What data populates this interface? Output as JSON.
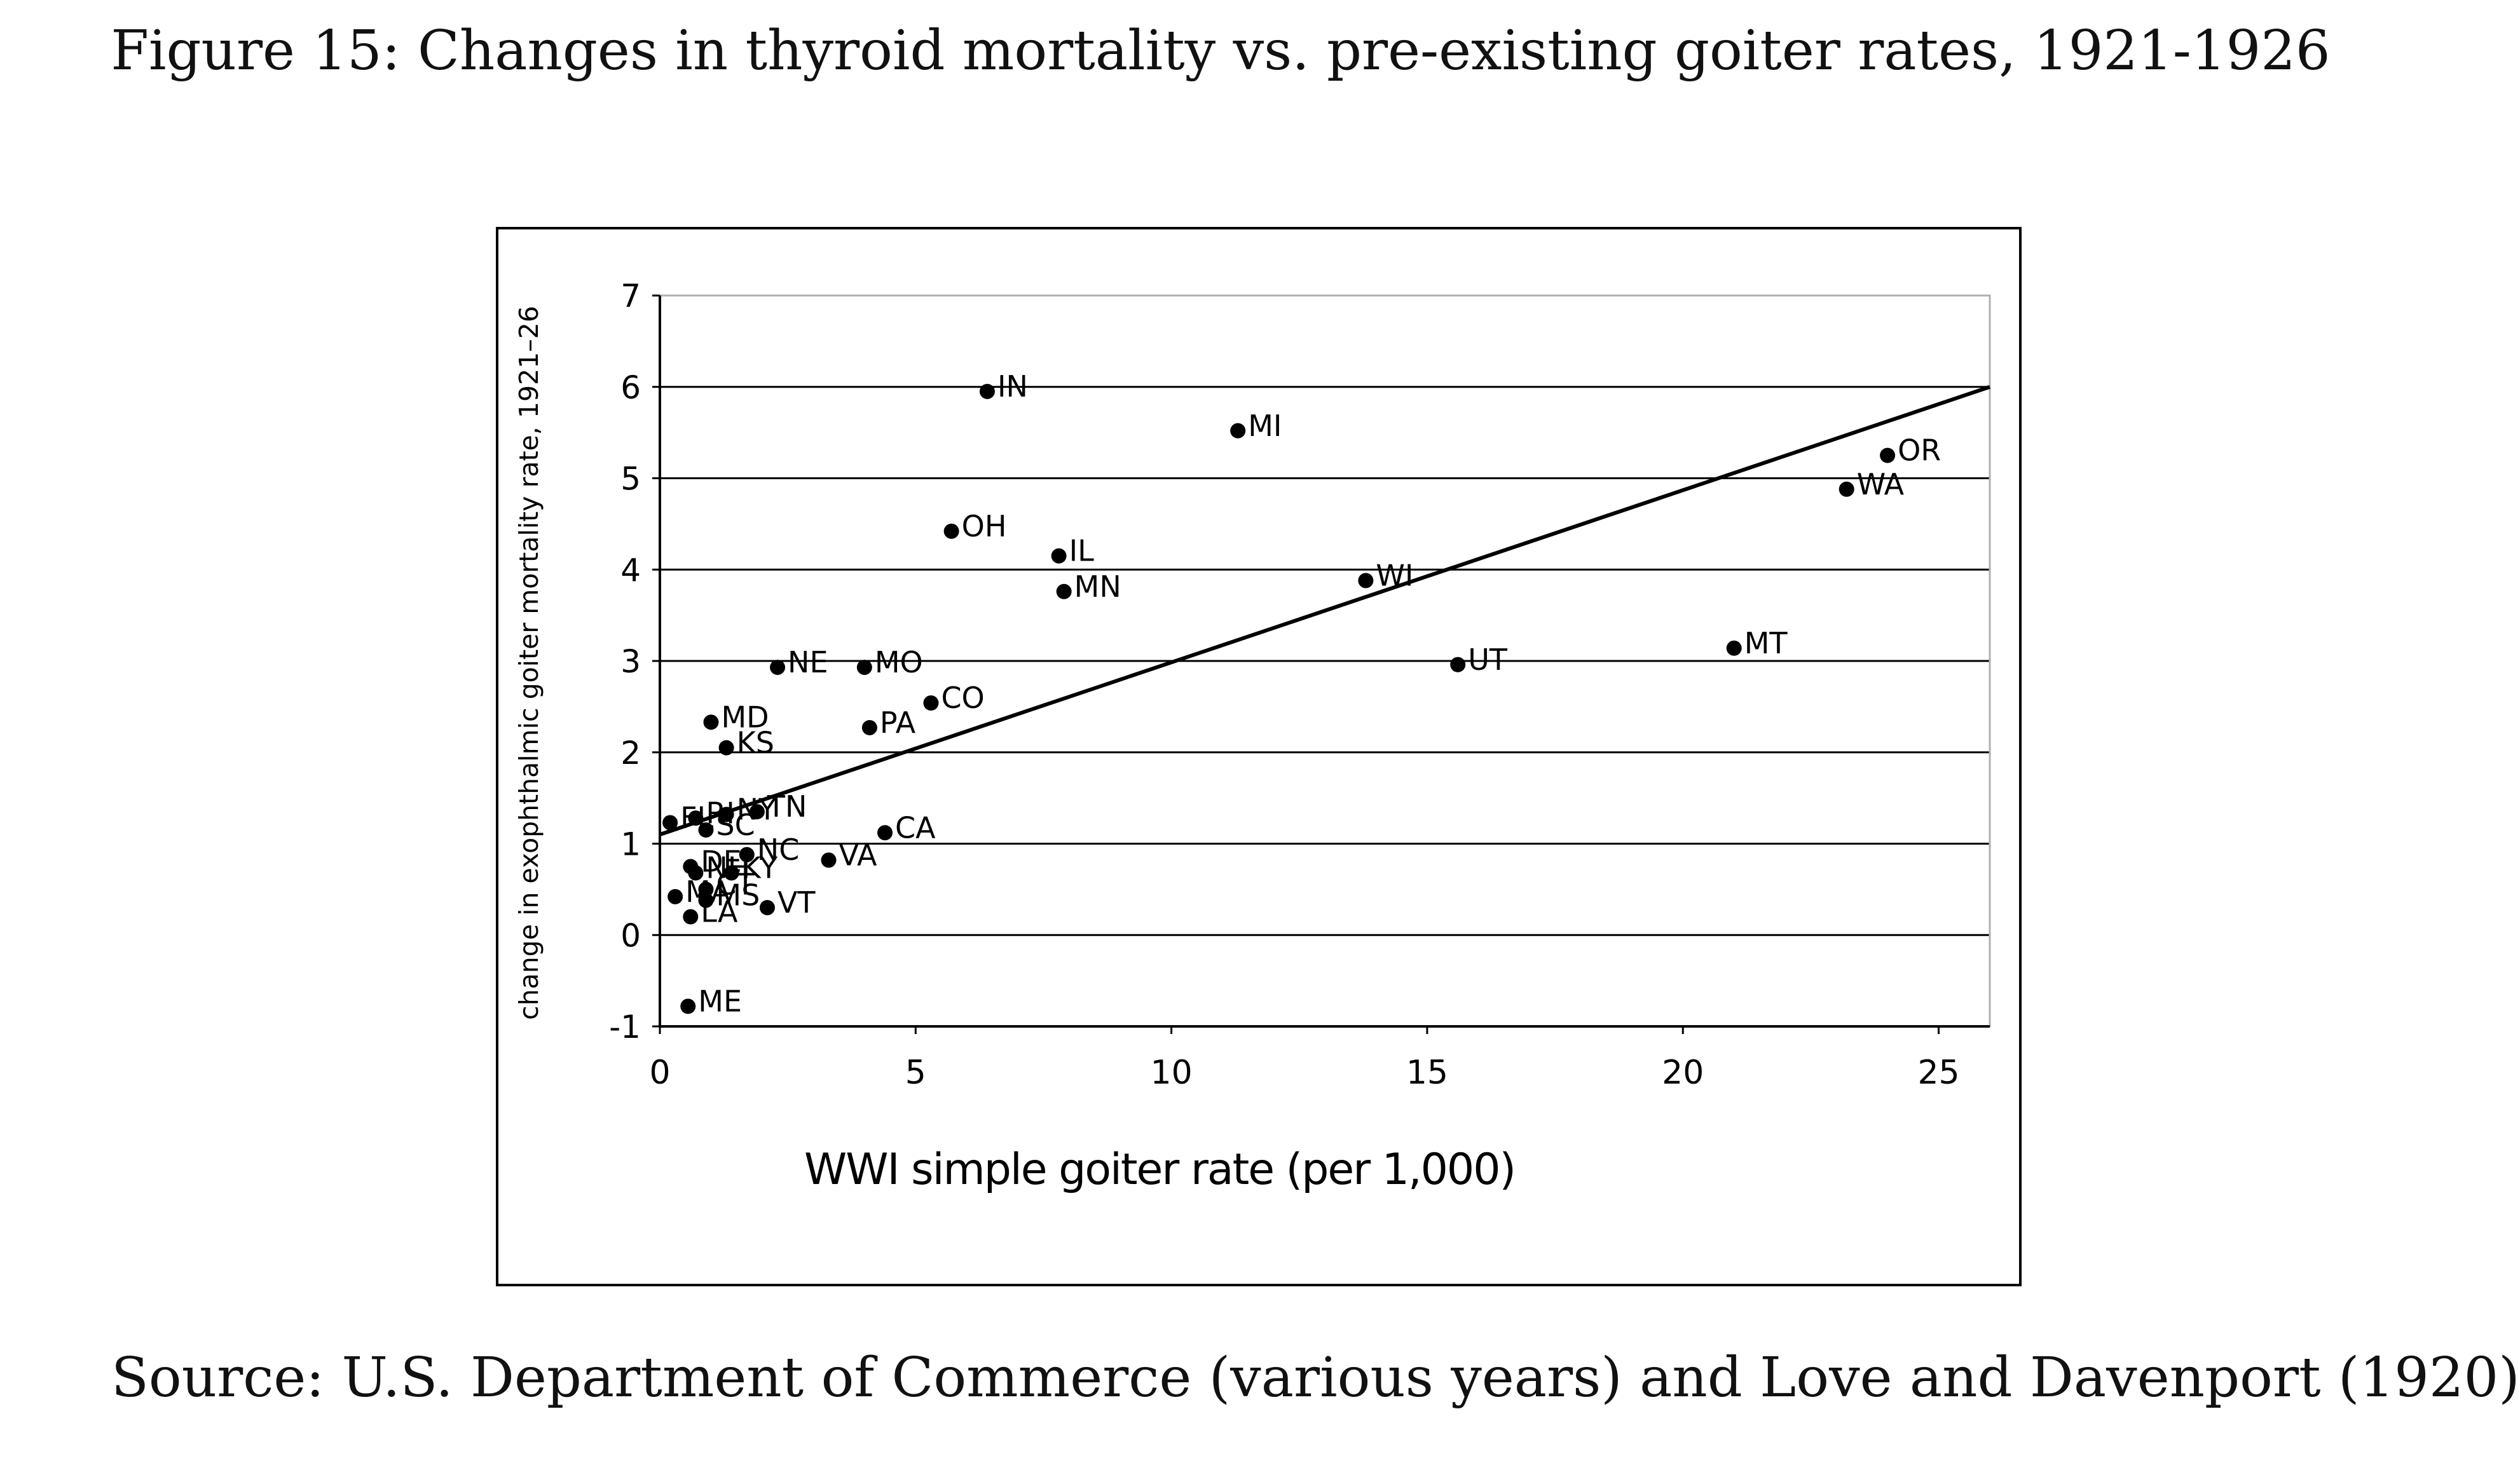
{
  "figure_title": "Figure 15: Changes in thyroid mortality vs. pre-existing goiter rates, 1921-1926",
  "source_note": "Source: U.S. Department of Commerce (various years) and Love and Davenport (1920)",
  "chart_data": {
    "type": "scatter",
    "title": "",
    "xlabel": "WWI simple goiter rate (per 1,000)",
    "ylabel": "change in exophthalmic goiter mortality rate, 1921–26",
    "xlim": [
      0,
      26
    ],
    "ylim": [
      -1,
      7
    ],
    "xticks": [
      0,
      5,
      10,
      15,
      20,
      25
    ],
    "yticks": [
      -1,
      0,
      1,
      2,
      3,
      4,
      5,
      6,
      7
    ],
    "grid": "horizontal",
    "points": [
      {
        "label": "IN",
        "x": 6.4,
        "y": 5.95
      },
      {
        "label": "MI",
        "x": 11.3,
        "y": 5.52
      },
      {
        "label": "OR",
        "x": 24.0,
        "y": 5.25
      },
      {
        "label": "WA",
        "x": 23.2,
        "y": 4.88
      },
      {
        "label": "OH",
        "x": 5.7,
        "y": 4.42
      },
      {
        "label": "IL",
        "x": 7.8,
        "y": 4.15
      },
      {
        "label": "MN",
        "x": 7.9,
        "y": 3.76
      },
      {
        "label": "WI",
        "x": 13.8,
        "y": 3.88
      },
      {
        "label": "MT",
        "x": 21.0,
        "y": 3.14
      },
      {
        "label": "UT",
        "x": 15.6,
        "y": 2.96
      },
      {
        "label": "NE",
        "x": 2.3,
        "y": 2.93
      },
      {
        "label": "MO",
        "x": 4.0,
        "y": 2.93
      },
      {
        "label": "CO",
        "x": 5.3,
        "y": 2.54
      },
      {
        "label": "PA",
        "x": 4.1,
        "y": 2.27
      },
      {
        "label": "MD",
        "x": 1.0,
        "y": 2.33
      },
      {
        "label": "KS",
        "x": 1.3,
        "y": 2.05
      },
      {
        "label": "TN",
        "x": 1.9,
        "y": 1.35
      },
      {
        "label": "NY",
        "x": 1.3,
        "y": 1.32
      },
      {
        "label": "RI",
        "x": 0.7,
        "y": 1.28
      },
      {
        "label": "FL",
        "x": 0.2,
        "y": 1.23
      },
      {
        "label": "SC",
        "x": 0.9,
        "y": 1.15
      },
      {
        "label": "CA",
        "x": 4.4,
        "y": 1.12
      },
      {
        "label": "NC",
        "x": 1.7,
        "y": 0.88
      },
      {
        "label": "VA",
        "x": 3.3,
        "y": 0.82
      },
      {
        "label": "DE",
        "x": 0.6,
        "y": 0.75
      },
      {
        "label": "NH",
        "x": 0.7,
        "y": 0.68
      },
      {
        "label": "KY",
        "x": 1.4,
        "y": 0.68
      },
      {
        "label": "CT",
        "x": 0.9,
        "y": 0.5
      },
      {
        "label": "MA",
        "x": 0.3,
        "y": 0.42
      },
      {
        "label": "MS",
        "x": 0.9,
        "y": 0.38
      },
      {
        "label": "VT",
        "x": 2.1,
        "y": 0.3
      },
      {
        "label": "LA",
        "x": 0.6,
        "y": 0.2
      },
      {
        "label": "ME",
        "x": 0.55,
        "y": -0.78
      }
    ],
    "fit_line": {
      "x": [
        0,
        26
      ],
      "y": [
        1.1,
        6.0
      ]
    }
  }
}
